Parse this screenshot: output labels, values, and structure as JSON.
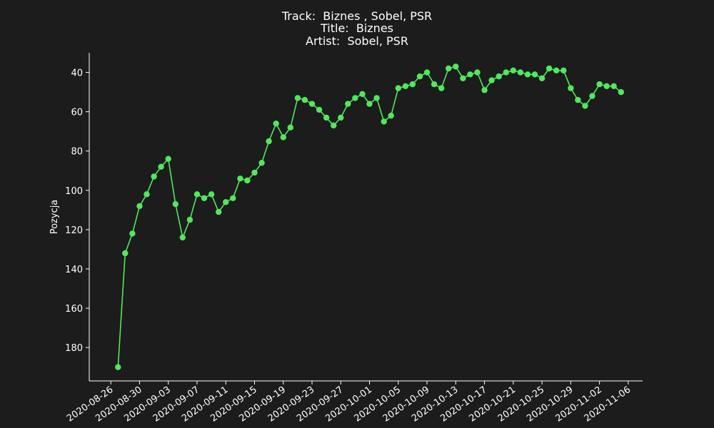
{
  "colors": {
    "background": "#1c1c1c",
    "foreground": "#ffffff",
    "series": "#4eea5a",
    "axis": "#ffffff"
  },
  "header": {
    "track_line": "Track:  Biznes , Sobel, PSR",
    "title_line": "Title:  Biznes",
    "artist_line": "Artist:  Sobel, PSR"
  },
  "chart_data": {
    "type": "line",
    "title": "Track:  Biznes , Sobel, PSR\nTitle:  Biznes\nArtist:  Sobel, PSR",
    "xlabel": "",
    "ylabel": "Pozycja",
    "y_inverted": true,
    "ylim": [
      30,
      197
    ],
    "xlim": [
      "2020-08-23",
      "2020-11-08"
    ],
    "yticks": [
      40,
      60,
      80,
      100,
      120,
      140,
      160,
      180
    ],
    "xticks": [
      "2020-08-26",
      "2020-08-30",
      "2020-09-03",
      "2020-09-07",
      "2020-09-11",
      "2020-09-15",
      "2020-09-19",
      "2020-09-23",
      "2020-09-27",
      "2020-10-01",
      "2020-10-05",
      "2020-10-09",
      "2020-10-13",
      "2020-10-17",
      "2020-10-21",
      "2020-10-25",
      "2020-10-29",
      "2020-11-02",
      "2020-11-06"
    ],
    "grid": false,
    "legend": "none",
    "series": [
      {
        "marker": "circle",
        "x": [
          "2020-08-27",
          "2020-08-28",
          "2020-08-29",
          "2020-08-30",
          "2020-08-31",
          "2020-09-01",
          "2020-09-02",
          "2020-09-03",
          "2020-09-04",
          "2020-09-05",
          "2020-09-06",
          "2020-09-07",
          "2020-09-08",
          "2020-09-09",
          "2020-09-10",
          "2020-09-11",
          "2020-09-12",
          "2020-09-13",
          "2020-09-14",
          "2020-09-15",
          "2020-09-16",
          "2020-09-17",
          "2020-09-18",
          "2020-09-19",
          "2020-09-20",
          "2020-09-21",
          "2020-09-22",
          "2020-09-23",
          "2020-09-24",
          "2020-09-25",
          "2020-09-26",
          "2020-09-27",
          "2020-09-28",
          "2020-09-29",
          "2020-09-30",
          "2020-10-01",
          "2020-10-02",
          "2020-10-03",
          "2020-10-04",
          "2020-10-05",
          "2020-10-06",
          "2020-10-07",
          "2020-10-08",
          "2020-10-09",
          "2020-10-10",
          "2020-10-11",
          "2020-10-12",
          "2020-10-13",
          "2020-10-14",
          "2020-10-15",
          "2020-10-16",
          "2020-10-17",
          "2020-10-18",
          "2020-10-19",
          "2020-10-20",
          "2020-10-21",
          "2020-10-22",
          "2020-10-23",
          "2020-10-24",
          "2020-10-25",
          "2020-10-26",
          "2020-10-27",
          "2020-10-28",
          "2020-10-29",
          "2020-10-30",
          "2020-10-31",
          "2020-11-01",
          "2020-11-02",
          "2020-11-03",
          "2020-11-04",
          "2020-11-05"
        ],
        "y": [
          190,
          132,
          122,
          108,
          102,
          93,
          88,
          84,
          107,
          124,
          115,
          102,
          104,
          102,
          111,
          106,
          104,
          94,
          95,
          91,
          86,
          75,
          66,
          73,
          68,
          53,
          54,
          56,
          59,
          63,
          67,
          63,
          56,
          53,
          51,
          56,
          53,
          65,
          62,
          48,
          47,
          46,
          42,
          40,
          46,
          48,
          38,
          37,
          43,
          41,
          40,
          49,
          44,
          42,
          40,
          39,
          40,
          41,
          41,
          43,
          38,
          39,
          39,
          48,
          54,
          57,
          52,
          46,
          47,
          47,
          50
        ]
      }
    ]
  }
}
